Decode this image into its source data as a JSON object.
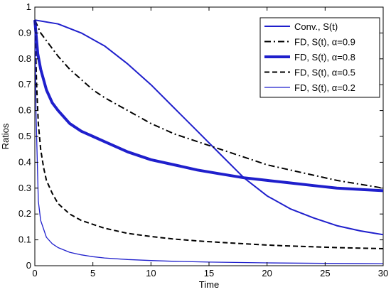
{
  "chart_data": {
    "type": "line",
    "xlabel": "Time",
    "ylabel": "Ratios",
    "xlim": [
      0,
      30
    ],
    "ylim": [
      0,
      1
    ],
    "xticks": [
      0,
      5,
      10,
      15,
      20,
      25,
      30
    ],
    "yticks": [
      0,
      0.1,
      0.2,
      0.3,
      0.4,
      0.5,
      0.6,
      0.7,
      0.8,
      0.9,
      1
    ],
    "grid": false,
    "legend_position": "top-right",
    "colors": {
      "blue": "#1f1fcc",
      "black": "#000000"
    },
    "series": [
      {
        "name": "Conv., S(t)",
        "color": "#1f1fcc",
        "style": "solid",
        "weight": "normal",
        "x": [
          0,
          2,
          4,
          6,
          8,
          10,
          12,
          14,
          16,
          18,
          20,
          22,
          24,
          26,
          28,
          30
        ],
        "y": [
          0.95,
          0.935,
          0.9,
          0.85,
          0.78,
          0.7,
          0.61,
          0.52,
          0.43,
          0.34,
          0.27,
          0.22,
          0.185,
          0.155,
          0.135,
          0.12
        ]
      },
      {
        "name": "FD, S(t), α=0.9",
        "color": "#000000",
        "style": "dashdot",
        "weight": "normal",
        "x": [
          0,
          0.5,
          1,
          2,
          3,
          4,
          5,
          6,
          8,
          10,
          12,
          14,
          16,
          18,
          20,
          22,
          24,
          26,
          28,
          30
        ],
        "y": [
          0.95,
          0.9,
          0.87,
          0.81,
          0.76,
          0.72,
          0.68,
          0.65,
          0.6,
          0.55,
          0.51,
          0.48,
          0.45,
          0.42,
          0.39,
          0.37,
          0.35,
          0.33,
          0.315,
          0.3
        ]
      },
      {
        "name": "FD, S(t), α=0.8",
        "color": "#1f1fcc",
        "style": "solid",
        "weight": "bold",
        "x": [
          0,
          0.25,
          0.5,
          1,
          1.5,
          2,
          3,
          4,
          5,
          6,
          8,
          10,
          12,
          14,
          16,
          18,
          20,
          22,
          24,
          26,
          28,
          30
        ],
        "y": [
          0.95,
          0.82,
          0.76,
          0.68,
          0.63,
          0.6,
          0.55,
          0.52,
          0.5,
          0.48,
          0.44,
          0.41,
          0.39,
          0.37,
          0.355,
          0.34,
          0.33,
          0.32,
          0.31,
          0.3,
          0.295,
          0.29
        ]
      },
      {
        "name": "FD, S(t), α=0.5",
        "color": "#000000",
        "style": "dashed",
        "weight": "normal",
        "x": [
          0,
          0.15,
          0.3,
          0.5,
          0.75,
          1,
          1.5,
          2,
          3,
          4,
          5,
          6,
          8,
          10,
          12,
          14,
          16,
          18,
          20,
          22,
          24,
          26,
          28,
          30
        ],
        "y": [
          0.95,
          0.7,
          0.55,
          0.45,
          0.38,
          0.33,
          0.28,
          0.24,
          0.2,
          0.175,
          0.16,
          0.145,
          0.125,
          0.113,
          0.103,
          0.096,
          0.09,
          0.085,
          0.08,
          0.076,
          0.073,
          0.07,
          0.068,
          0.066
        ]
      },
      {
        "name": "FD, S(t), α=0.2",
        "color": "#1f1fcc",
        "style": "solid",
        "weight": "thin",
        "x": [
          0,
          0.1,
          0.3,
          0.5,
          1,
          1.5,
          2,
          3,
          4,
          5,
          6,
          8,
          10,
          12,
          15,
          20,
          25,
          30
        ],
        "y": [
          0.95,
          0.6,
          0.25,
          0.175,
          0.11,
          0.085,
          0.07,
          0.052,
          0.042,
          0.035,
          0.03,
          0.024,
          0.02,
          0.017,
          0.014,
          0.011,
          0.009,
          0.008
        ]
      }
    ]
  }
}
